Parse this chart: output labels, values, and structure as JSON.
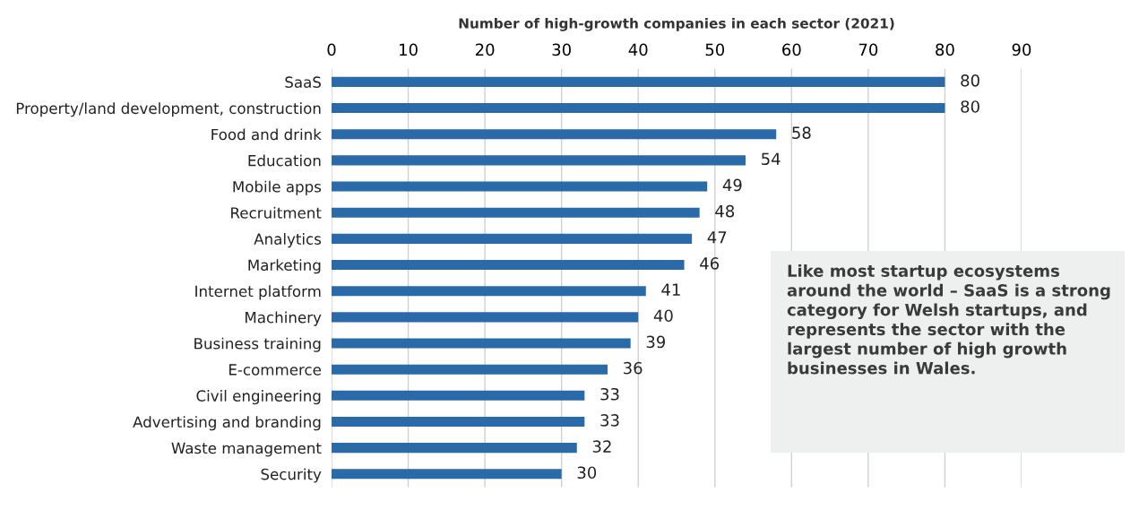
{
  "chart_data": {
    "type": "bar",
    "orientation": "horizontal",
    "xlabel": "Number of high-growth companies in each sector (2021)",
    "categories": [
      "SaaS",
      "Property/land development, construction",
      "Food and drink",
      "Education",
      "Mobile apps",
      "Recruitment",
      "Analytics",
      "Marketing",
      "Internet platform",
      "Machinery",
      "Business training",
      "E-commerce",
      "Civil engineering",
      "Advertising and branding",
      "Waste management",
      "Security"
    ],
    "values": [
      80,
      80,
      58,
      54,
      49,
      48,
      47,
      46,
      41,
      40,
      39,
      36,
      33,
      33,
      32,
      30
    ],
    "color": "#2a6aa8",
    "xlim": [
      0,
      90
    ],
    "xticks": [
      0,
      10,
      20,
      30,
      40,
      50,
      60,
      70,
      80,
      90
    ],
    "grid": "x",
    "data_labels": true,
    "legend": false,
    "annotations": [
      "Like most startup ecosystems around the world – SaaS is a strong category for Welsh startups, and represents the sector with the largest number of high growth businesses in Wales."
    ]
  }
}
